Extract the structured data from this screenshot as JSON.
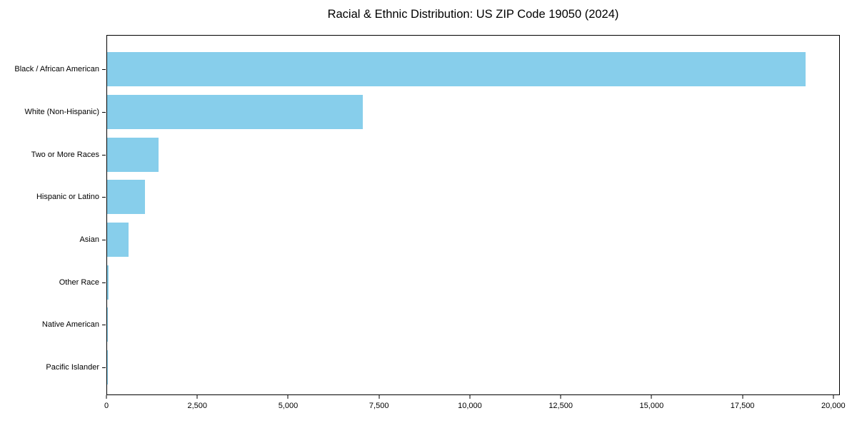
{
  "title": "Racial & Ethnic Distribution: US ZIP Code 19050 (2024)",
  "colors": {
    "bar": "#87CEEB",
    "axis": "#000000",
    "text": "#000000",
    "background": "#ffffff"
  },
  "chart_data": {
    "type": "bar",
    "orientation": "horizontal",
    "title": "Racial & Ethnic Distribution: US ZIP Code 19050 (2024)",
    "categories": [
      "Black / African American",
      "White (Non-Hispanic)",
      "Two or More Races",
      "Hispanic or Latino",
      "Asian",
      "Other Race",
      "Native American",
      "Pacific Islander"
    ],
    "values": [
      19250,
      7040,
      1420,
      1040,
      590,
      40,
      20,
      10
    ],
    "xlabel": "",
    "ylabel": "",
    "xlim": [
      0,
      20180
    ],
    "xticks": [
      0,
      2500,
      5000,
      7500,
      10000,
      12500,
      15000,
      17500,
      20000
    ],
    "xtick_labels": [
      "0",
      "2,500",
      "5,000",
      "7,500",
      "10,000",
      "12,500",
      "15,000",
      "17,500",
      "20,000"
    ],
    "bar_color": "#87CEEB",
    "grid": false,
    "legend": "none"
  }
}
